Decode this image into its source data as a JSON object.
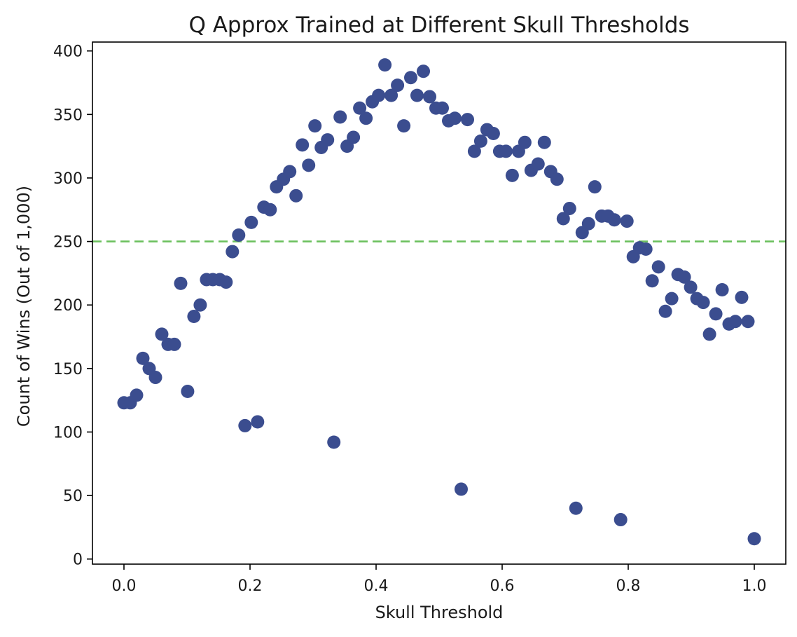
{
  "chart_data": {
    "type": "scatter",
    "title": "Q Approx Trained at Different Skull Thresholds",
    "xlabel": "Skull Threshold",
    "ylabel": "Count of Wins (Out of 1,000)",
    "xlim": [
      -0.05,
      1.05
    ],
    "ylim": [
      -4,
      407
    ],
    "xticks": [
      0.0,
      0.2,
      0.4,
      0.6,
      0.8,
      1.0
    ],
    "xtick_labels": [
      "0.0",
      "0.2",
      "0.4",
      "0.6",
      "0.8",
      "1.0"
    ],
    "yticks": [
      0,
      50,
      100,
      150,
      200,
      250,
      300,
      350,
      400
    ],
    "ytick_labels": [
      "0",
      "50",
      "100",
      "150",
      "200",
      "250",
      "300",
      "350",
      "400"
    ],
    "grid": false,
    "reference_line": {
      "y": 250,
      "style": "dashed",
      "color": "#6cc05e"
    },
    "marker_color": "#3b4d8f",
    "series": [
      {
        "points": [
          [
            0.0,
            123
          ],
          [
            0.01,
            123
          ],
          [
            0.02,
            129
          ],
          [
            0.03,
            158
          ],
          [
            0.04,
            150
          ],
          [
            0.05,
            143
          ],
          [
            0.06,
            177
          ],
          [
            0.07,
            169
          ],
          [
            0.08,
            169
          ],
          [
            0.09,
            217
          ],
          [
            0.101,
            132
          ],
          [
            0.111,
            191
          ],
          [
            0.121,
            200
          ],
          [
            0.131,
            220
          ],
          [
            0.141,
            220
          ],
          [
            0.152,
            220
          ],
          [
            0.162,
            218
          ],
          [
            0.172,
            242
          ],
          [
            0.182,
            255
          ],
          [
            0.192,
            105
          ],
          [
            0.202,
            265
          ],
          [
            0.212,
            108
          ],
          [
            0.222,
            277
          ],
          [
            0.232,
            275
          ],
          [
            0.242,
            293
          ],
          [
            0.253,
            299
          ],
          [
            0.263,
            305
          ],
          [
            0.273,
            286
          ],
          [
            0.283,
            326
          ],
          [
            0.293,
            310
          ],
          [
            0.303,
            341
          ],
          [
            0.313,
            324
          ],
          [
            0.323,
            330
          ],
          [
            0.333,
            92
          ],
          [
            0.343,
            348
          ],
          [
            0.354,
            325
          ],
          [
            0.364,
            332
          ],
          [
            0.374,
            355
          ],
          [
            0.384,
            347
          ],
          [
            0.394,
            360
          ],
          [
            0.404,
            365
          ],
          [
            0.414,
            389
          ],
          [
            0.424,
            365
          ],
          [
            0.434,
            373
          ],
          [
            0.444,
            341
          ],
          [
            0.455,
            379
          ],
          [
            0.465,
            365
          ],
          [
            0.475,
            384
          ],
          [
            0.485,
            364
          ],
          [
            0.495,
            355
          ],
          [
            0.505,
            355
          ],
          [
            0.515,
            345
          ],
          [
            0.525,
            347
          ],
          [
            0.535,
            55
          ],
          [
            0.545,
            346
          ],
          [
            0.556,
            321
          ],
          [
            0.566,
            329
          ],
          [
            0.576,
            338
          ],
          [
            0.586,
            335
          ],
          [
            0.596,
            321
          ],
          [
            0.606,
            321
          ],
          [
            0.616,
            302
          ],
          [
            0.626,
            321
          ],
          [
            0.636,
            328
          ],
          [
            0.646,
            306
          ],
          [
            0.657,
            311
          ],
          [
            0.667,
            328
          ],
          [
            0.677,
            305
          ],
          [
            0.687,
            299
          ],
          [
            0.697,
            268
          ],
          [
            0.707,
            276
          ],
          [
            0.717,
            40
          ],
          [
            0.727,
            257
          ],
          [
            0.737,
            264
          ],
          [
            0.747,
            293
          ],
          [
            0.758,
            270
          ],
          [
            0.768,
            270
          ],
          [
            0.778,
            267
          ],
          [
            0.788,
            31
          ],
          [
            0.798,
            266
          ],
          [
            0.808,
            238
          ],
          [
            0.818,
            245
          ],
          [
            0.828,
            244
          ],
          [
            0.838,
            219
          ],
          [
            0.848,
            230
          ],
          [
            0.859,
            195
          ],
          [
            0.869,
            205
          ],
          [
            0.879,
            224
          ],
          [
            0.889,
            222
          ],
          [
            0.899,
            214
          ],
          [
            0.909,
            205
          ],
          [
            0.919,
            202
          ],
          [
            0.929,
            177
          ],
          [
            0.939,
            193
          ],
          [
            0.949,
            212
          ],
          [
            0.96,
            185
          ],
          [
            0.97,
            187
          ],
          [
            0.98,
            206
          ],
          [
            0.99,
            187
          ],
          [
            1.0,
            16
          ]
        ]
      }
    ]
  }
}
